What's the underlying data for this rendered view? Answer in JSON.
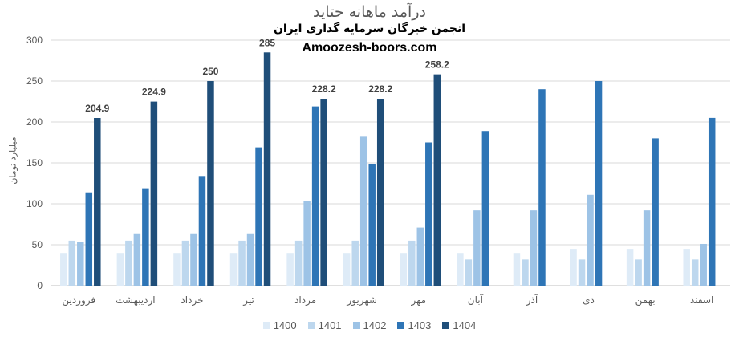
{
  "chart_data": {
    "type": "bar",
    "title": "درآمد ماهانه حتاید",
    "subtitle": "انجمن خبرگان سرمایه گذاری ایران",
    "source": "Amoozesh-boors.com",
    "ylabel": "میلیارد تومان",
    "xlabel": "",
    "ylim": [
      0,
      300
    ],
    "yticks": [
      0,
      50,
      100,
      150,
      200,
      250,
      300
    ],
    "grid": true,
    "legend_position": "bottom",
    "categories": [
      "فروردین",
      "اردیبهشت",
      "خرداد",
      "تیر",
      "مرداد",
      "شهریور",
      "مهر",
      "آبان",
      "آذر",
      "دی",
      "بهمن",
      "اسفند"
    ],
    "series": [
      {
        "name": "1400",
        "color": "#deebf7",
        "values": [
          40,
          40,
          40,
          40,
          40,
          40,
          40,
          40,
          40,
          45,
          45,
          45
        ]
      },
      {
        "name": "1401",
        "color": "#bdd7ee",
        "values": [
          55,
          55,
          55,
          55,
          55,
          55,
          55,
          32,
          32,
          32,
          32,
          32
        ]
      },
      {
        "name": "1402",
        "color": "#9dc3e6",
        "values": [
          53,
          63,
          63,
          63,
          103,
          182,
          71,
          92,
          92,
          111,
          92,
          51
        ]
      },
      {
        "name": "1403",
        "color": "#2e75b6",
        "values": [
          114,
          119,
          134,
          169,
          219,
          149,
          175,
          189,
          240,
          250,
          180,
          205
        ]
      },
      {
        "name": "1404",
        "color": "#1f4e79",
        "values": [
          204.9,
          224.9,
          250,
          285,
          228.2,
          228.2,
          258.2,
          null,
          null,
          null,
          null,
          null
        ]
      }
    ],
    "data_labels_series": "1404"
  }
}
